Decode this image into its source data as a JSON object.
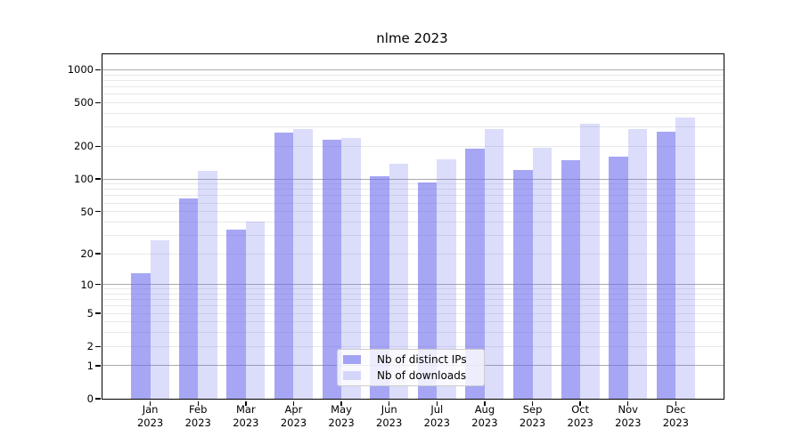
{
  "title": "nlme 2023",
  "chart_data": {
    "type": "bar",
    "title": "nlme 2023",
    "xlabel": "",
    "ylabel": "",
    "categories": [
      "Jan 2023",
      "Feb 2023",
      "Mar 2023",
      "Apr 2023",
      "May 2023",
      "Jun 2023",
      "Jul 2023",
      "Aug 2023",
      "Sep 2023",
      "Oct 2023",
      "Nov 2023",
      "Dec 2023"
    ],
    "series": [
      {
        "name": "Nb of distinct IPs",
        "color": "rgba(107,107,238,0.6)",
        "values": [
          13,
          66,
          34,
          264,
          230,
          107,
          93,
          191,
          121,
          150,
          159,
          269
        ]
      },
      {
        "name": "Nb of downloads",
        "color": "rgba(107,107,238,0.24)",
        "values": [
          27,
          119,
          40,
          285,
          240,
          137,
          153,
          289,
          192,
          319,
          285,
          364
        ]
      }
    ],
    "yscale": "log1p",
    "ylim": [
      0,
      1390
    ],
    "yticks": [
      0,
      1,
      2,
      5,
      10,
      20,
      50,
      100,
      200,
      500,
      1000
    ],
    "grid": true,
    "legend_position": "lower center"
  },
  "colors": {
    "background": "#ffffff",
    "bar_base": "#6b6bee",
    "grid_major": "#aaaaaa",
    "grid_minor": "#e8e8e8",
    "axis": "#000000",
    "legend_border": "#cccccc"
  }
}
